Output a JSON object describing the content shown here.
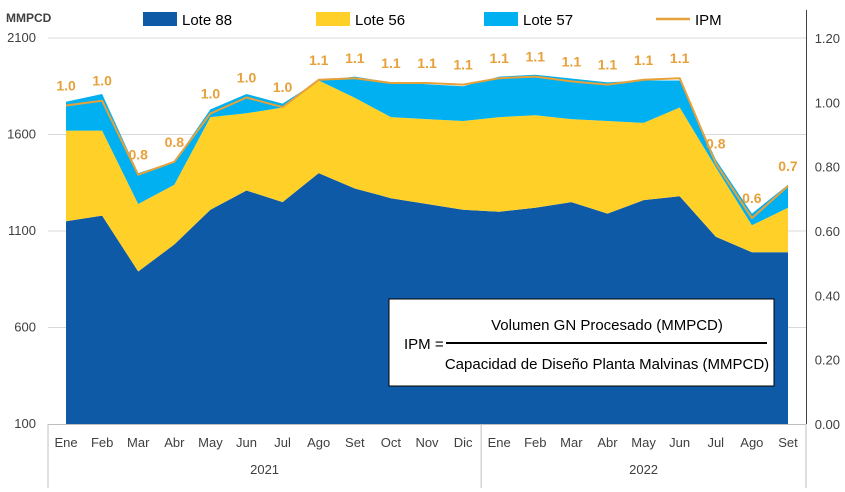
{
  "chart_data": {
    "type": "area",
    "y_left_unit": "MMPCD",
    "y_left_ticks": [
      "100",
      "600",
      "1100",
      "1600",
      "2100"
    ],
    "ylim_left": [
      100,
      2100
    ],
    "y_right_ticks": [
      "0.00",
      "0.20",
      "0.40",
      "0.60",
      "0.80",
      "1.00",
      "1.20"
    ],
    "ylim_right": [
      0,
      1.2
    ],
    "categories": [
      "Ene",
      "Feb",
      "Mar",
      "Abr",
      "May",
      "Jun",
      "Jul",
      "Ago",
      "Set",
      "Oct",
      "Nov",
      "Dic",
      "Ene",
      "Feb",
      "Mar",
      "Abr",
      "May",
      "Jun",
      "Jul",
      "Ago",
      "Set"
    ],
    "year_groups": [
      {
        "label": "2021",
        "count": 12
      },
      {
        "label": "2022",
        "count": 9
      }
    ],
    "series": [
      {
        "name": "Lote 88",
        "type": "stacked-area",
        "color": "#0F5AA6",
        "values": [
          1050,
          1080,
          790,
          930,
          1110,
          1210,
          1150,
          1300,
          1220,
          1170,
          1140,
          1110,
          1100,
          1120,
          1150,
          1090,
          1160,
          1180,
          970,
          890,
          890
        ]
      },
      {
        "name": "Lote 56",
        "type": "stacked-area",
        "color": "#FFD028",
        "values": [
          470,
          440,
          350,
          310,
          480,
          400,
          490,
          480,
          470,
          420,
          440,
          460,
          490,
          480,
          430,
          480,
          400,
          460,
          360,
          140,
          230
        ]
      },
      {
        "name": "Lote 57",
        "type": "stacked-area",
        "color": "#00B0F0",
        "values": [
          150,
          190,
          160,
          120,
          40,
          100,
          20,
          0,
          110,
          180,
          180,
          180,
          210,
          210,
          210,
          200,
          220,
          140,
          40,
          60,
          120
        ]
      },
      {
        "name": "IPM",
        "type": "line",
        "axis": "right",
        "color": "#E7A13B",
        "values": [
          0.99,
          1.005,
          0.775,
          0.815,
          0.965,
          1.015,
          0.985,
          1.07,
          1.075,
          1.06,
          1.06,
          1.055,
          1.075,
          1.08,
          1.065,
          1.055,
          1.07,
          1.075,
          0.81,
          0.64,
          0.74
        ],
        "labels": [
          "1.0",
          "1.0",
          "0.8",
          "0.8",
          "1.0",
          "1.0",
          "1.0",
          "1.1",
          "1.1",
          "1.1",
          "1.1",
          "1.1",
          "1.1",
          "1.1",
          "1.1",
          "1.1",
          "1.1",
          "1.1",
          "0.8",
          "0.6",
          "0.7"
        ]
      }
    ]
  },
  "formula": {
    "lhs": "IPM =",
    "numerator": "Volumen GN Procesado (MMPCD)",
    "denominator": "Capacidad de Diseño Planta Malvinas (MMPCD)"
  }
}
